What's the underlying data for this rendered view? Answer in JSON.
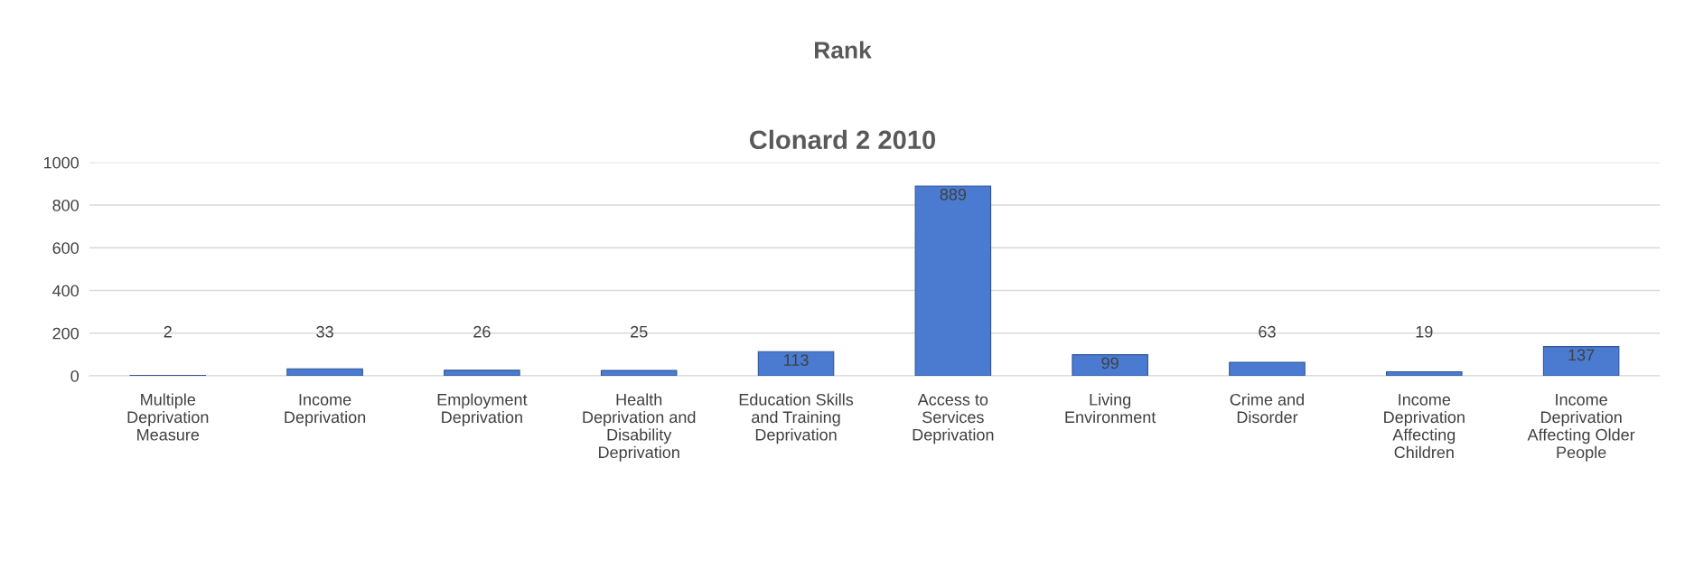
{
  "chart_data": {
    "type": "bar",
    "title": "Rank",
    "subtitle": "Clonard 2 2010",
    "categories": [
      "Multiple Deprivation Measure",
      "Income Deprivation",
      "Employment Deprivation",
      "Health Deprivation and Disability Deprivation",
      "Education Skills and Training Deprivation",
      "Access to Services Deprivation",
      "Living Environment",
      "Crime and Disorder",
      "Income Deprivation Affecting Children",
      "Income Deprivation Affecting Older People"
    ],
    "values": [
      2,
      33,
      26,
      25,
      113,
      889,
      99,
      63,
      19,
      137
    ],
    "color": "#4a7bd0",
    "ylim": [
      0,
      1000
    ],
    "yticks": [
      0,
      200,
      400,
      600,
      800,
      1000
    ],
    "grid": "y",
    "data_labels": true
  }
}
